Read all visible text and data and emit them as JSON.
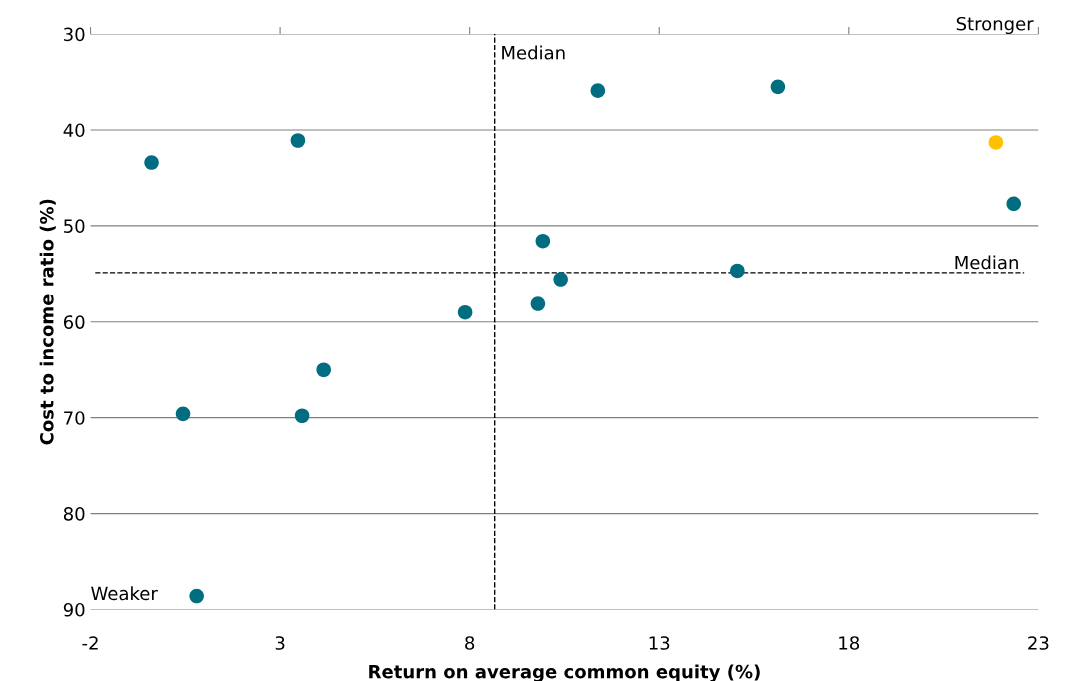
{
  "chart_data": {
    "type": "scatter",
    "xlabel": "Return on average common equity (%)",
    "ylabel": "Cost to income ratio (%)",
    "xlim": [
      -2,
      23
    ],
    "xticks": [
      -2,
      3,
      8,
      13,
      18,
      23
    ],
    "ylim": [
      90,
      30
    ],
    "yticks": [
      30,
      40,
      50,
      60,
      70,
      80,
      90
    ],
    "grid": "y",
    "marker": "circle",
    "series": [
      {
        "color": "#006d80",
        "x": [
          -0.39,
          3.47,
          11.38,
          16.13,
          22.35,
          9.93,
          15.06,
          10.4,
          9.8,
          7.88,
          4.15,
          0.44,
          3.58,
          0.8
        ],
        "values": [
          43.4,
          41.1,
          35.9,
          35.5,
          47.7,
          51.6,
          54.7,
          55.6,
          58.1,
          59.0,
          65.0,
          69.6,
          69.8,
          88.6
        ]
      },
      {
        "color": "#ffc000",
        "x": [
          21.88
        ],
        "values": [
          41.3
        ]
      }
    ],
    "ref_lines": [
      {
        "axis": "x",
        "value": 8.66,
        "label": "Median",
        "line_style": "dashed"
      },
      {
        "axis": "y",
        "value": 54.9,
        "label": "Median",
        "line_style": "dashed"
      }
    ],
    "annotations": [
      "Stronger",
      "Weaker"
    ]
  }
}
